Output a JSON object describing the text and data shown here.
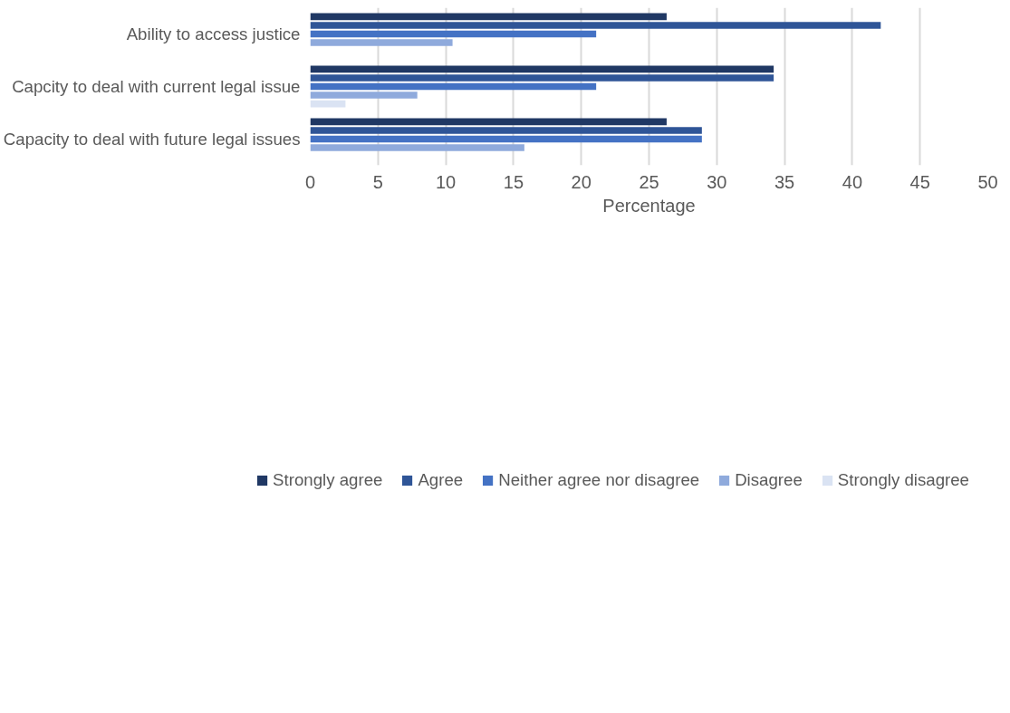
{
  "chart_data": {
    "type": "bar",
    "orientation": "horizontal",
    "xlabel": "Percentage",
    "categories": [
      "Ability to access justice",
      "Capcity to deal with current legal issue",
      "Capacity to deal with future legal issues"
    ],
    "series": [
      {
        "name": "Strongly agree",
        "color": "#203864",
        "values": [
          26.3,
          34.2,
          26.3
        ]
      },
      {
        "name": "Agree",
        "color": "#2f5597",
        "values": [
          42.1,
          34.2,
          28.9
        ]
      },
      {
        "name": "Neither agree nor disagree",
        "color": "#4472c4",
        "values": [
          21.1,
          21.1,
          28.9
        ]
      },
      {
        "name": "Disagree",
        "color": "#8faadc",
        "values": [
          10.5,
          7.9,
          15.8
        ]
      },
      {
        "name": "Strongly disagree",
        "color": "#dae3f3",
        "values": [
          null,
          2.6,
          null
        ]
      }
    ],
    "xlim": [
      0,
      50
    ],
    "xticks": [
      0,
      5,
      10,
      15,
      20,
      25,
      30,
      35,
      40,
      45,
      50
    ],
    "grid": "x",
    "legend": "bottom"
  }
}
